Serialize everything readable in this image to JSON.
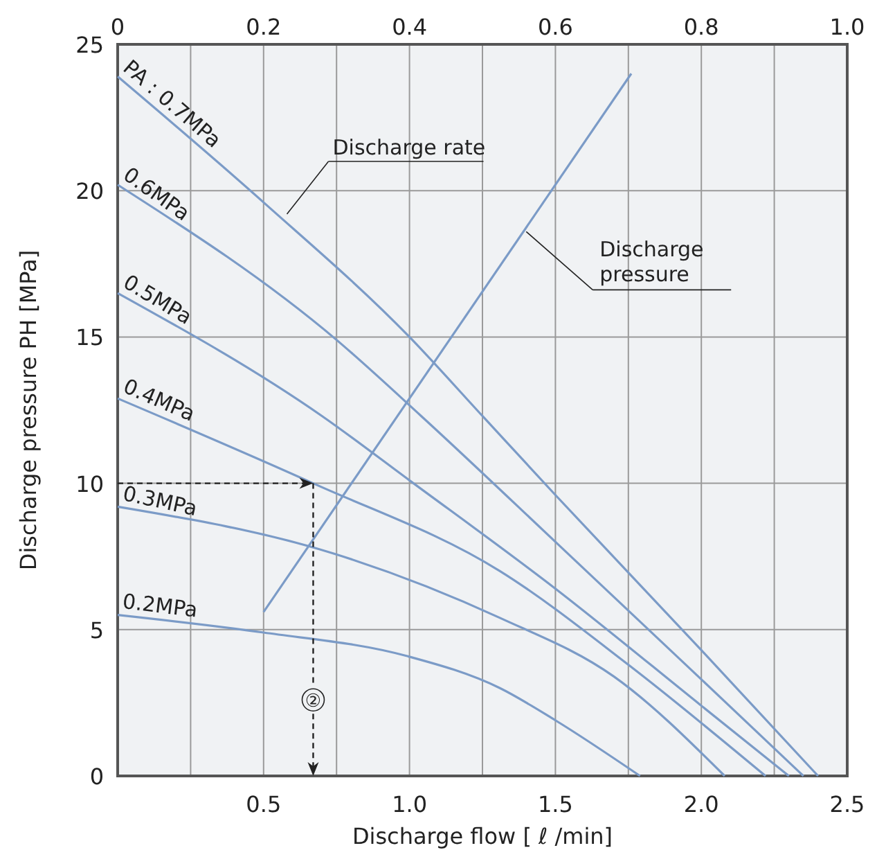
{
  "chart_data": {
    "type": "line",
    "xlabel": "Discharge flow [ ℓ /min]",
    "ylabel": "Discharge pressure PH [MPa]",
    "xlim": [
      0,
      2.5
    ],
    "xticks": [
      0.5,
      {
        "value": 1,
        "label": "1.0"
      },
      1.5,
      {
        "value": 2,
        "label": "2.0"
      },
      2.5
    ],
    "x2lim": [
      0,
      1.0
    ],
    "x2ticks": [
      0,
      {
        "value": 0.1,
        "label": null
      },
      0.2,
      {
        "value": 0.3,
        "label": null
      },
      0.4,
      {
        "value": 0.5,
        "label": null
      },
      0.6,
      {
        "value": 0.7,
        "label": null
      },
      0.8,
      {
        "value": 0.9,
        "label": null
      },
      {
        "value": 1,
        "label": "1.0"
      }
    ],
    "ylim": [
      0,
      25
    ],
    "yticks": [
      0,
      5,
      10,
      15,
      20,
      25
    ],
    "grid": true,
    "marker": "none",
    "line_style": "solid",
    "series": [
      {
        "name": "PA : 0.7MPa",
        "color": "#7b9bc7",
        "x": [
          0,
          0.5,
          1.0,
          1.25,
          1.5,
          2.0,
          2.4
        ],
        "values": [
          23.9,
          19.6,
          15.0,
          12.3,
          9.6,
          4.3,
          0
        ]
      },
      {
        "name": "0.6MPa",
        "color": "#7b9bc7",
        "x": [
          0,
          0.75,
          1.04,
          1.5,
          2.0,
          2.35
        ],
        "values": [
          20.2,
          14.9,
          12.3,
          8.0,
          3.3,
          0
        ]
      },
      {
        "name": "0.5MPa",
        "color": "#7b9bc7",
        "x": [
          0,
          0.7,
          1.0,
          1.5,
          2.0,
          2.3
        ],
        "values": [
          16.5,
          12.3,
          10.1,
          6.4,
          2.4,
          0
        ]
      },
      {
        "name": "0.4MPa",
        "color": "#7b9bc7",
        "x": [
          0,
          0.67,
          1.31,
          1.75,
          2.22
        ],
        "values": [
          12.9,
          10.0,
          7.0,
          3.8,
          0
        ]
      },
      {
        "name": "0.3MPa",
        "color": "#7b9bc7",
        "x": [
          0,
          0.74,
          1.31,
          1.7,
          2.08
        ],
        "values": [
          9.2,
          7.6,
          5.4,
          3.4,
          0
        ]
      },
      {
        "name": "0.2MPa",
        "color": "#7b9bc7",
        "x": [
          0,
          0.5,
          0.99,
          1.31,
          1.5,
          1.79
        ],
        "values": [
          5.5,
          4.9,
          4.1,
          3.0,
          1.9,
          0
        ]
      },
      {
        "color": "#7b9bc7",
        "x": [
          0.5,
          1.76
        ],
        "values": [
          5.6,
          24.0
        ]
      }
    ],
    "annotations": [
      {
        "text": "Discharge rate",
        "x": 0.58,
        "y": 19.2
      },
      {
        "text": "Discharge pressure",
        "x": 1.4,
        "y": 18.6
      },
      {
        "text": "②",
        "x": 0.67,
        "y": 2.6
      }
    ]
  }
}
